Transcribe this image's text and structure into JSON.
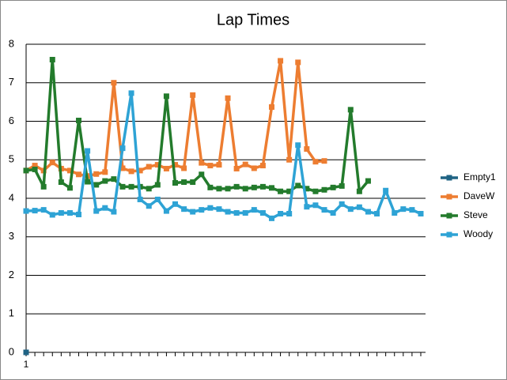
{
  "chart_data": {
    "type": "line",
    "title": "Lap Times",
    "categories": [
      "1",
      null,
      null,
      null,
      null,
      null,
      null,
      null,
      null,
      null,
      null,
      null,
      null,
      null,
      null,
      null,
      null,
      null,
      null,
      null,
      null,
      null,
      null,
      null,
      null,
      null,
      null,
      null,
      null,
      null,
      null,
      null,
      null,
      null,
      null,
      null,
      null,
      null,
      null,
      null,
      null,
      null,
      null,
      null,
      null,
      null
    ],
    "series": [
      {
        "name": "Empty1",
        "color": "#1f6384",
        "values": [
          0,
          null,
          null,
          null,
          null,
          null,
          null,
          null,
          null,
          null,
          null,
          null,
          null,
          null,
          null,
          null,
          null,
          null,
          null,
          null,
          null,
          null,
          null,
          null,
          null,
          null,
          null,
          null,
          null,
          null,
          null,
          null,
          null,
          null,
          null,
          null,
          null,
          null,
          null,
          null,
          null,
          null,
          null,
          null,
          null,
          null
        ]
      },
      {
        "name": "DaveW",
        "color": "#ed7d31",
        "values": [
          4.72,
          4.85,
          4.72,
          4.93,
          4.77,
          4.72,
          4.62,
          4.58,
          4.63,
          4.68,
          7.0,
          4.78,
          4.7,
          4.72,
          4.82,
          4.87,
          4.77,
          4.87,
          4.78,
          6.68,
          4.92,
          4.85,
          4.87,
          6.6,
          4.77,
          4.88,
          4.78,
          4.85,
          6.37,
          7.57,
          5.0,
          7.53,
          5.28,
          4.95,
          4.97,
          null,
          null,
          null,
          null,
          null,
          null,
          null,
          null,
          null,
          null,
          null
        ]
      },
      {
        "name": "Steve",
        "color": "#237b2c",
        "values": [
          4.72,
          4.75,
          4.3,
          7.6,
          4.42,
          4.27,
          6.02,
          4.43,
          4.35,
          4.45,
          4.5,
          4.3,
          4.3,
          4.3,
          4.25,
          4.35,
          6.65,
          4.4,
          4.42,
          4.42,
          4.62,
          4.28,
          4.25,
          4.25,
          4.3,
          4.25,
          4.28,
          4.3,
          4.27,
          4.18,
          4.18,
          4.33,
          4.25,
          4.18,
          4.22,
          4.28,
          4.32,
          6.3,
          4.18,
          4.45,
          null,
          null,
          null,
          null,
          null,
          null
        ]
      },
      {
        "name": "Woody",
        "color": "#2ea3d5",
        "values": [
          3.67,
          3.68,
          3.7,
          3.57,
          3.62,
          3.62,
          3.58,
          5.23,
          3.67,
          3.75,
          3.65,
          5.3,
          6.73,
          3.97,
          3.8,
          3.97,
          3.67,
          3.85,
          3.72,
          3.65,
          3.7,
          3.75,
          3.72,
          3.65,
          3.62,
          3.62,
          3.7,
          3.62,
          3.48,
          3.6,
          3.6,
          5.38,
          3.78,
          3.82,
          3.7,
          3.62,
          3.85,
          3.72,
          3.77,
          3.65,
          3.6,
          4.2,
          3.62,
          3.72,
          3.7,
          3.6
        ]
      }
    ],
    "ylim": [
      0,
      8
    ],
    "yticks": [
      0,
      1,
      2,
      3,
      4,
      5,
      6,
      7,
      8
    ],
    "grid": true,
    "legend": "right"
  }
}
